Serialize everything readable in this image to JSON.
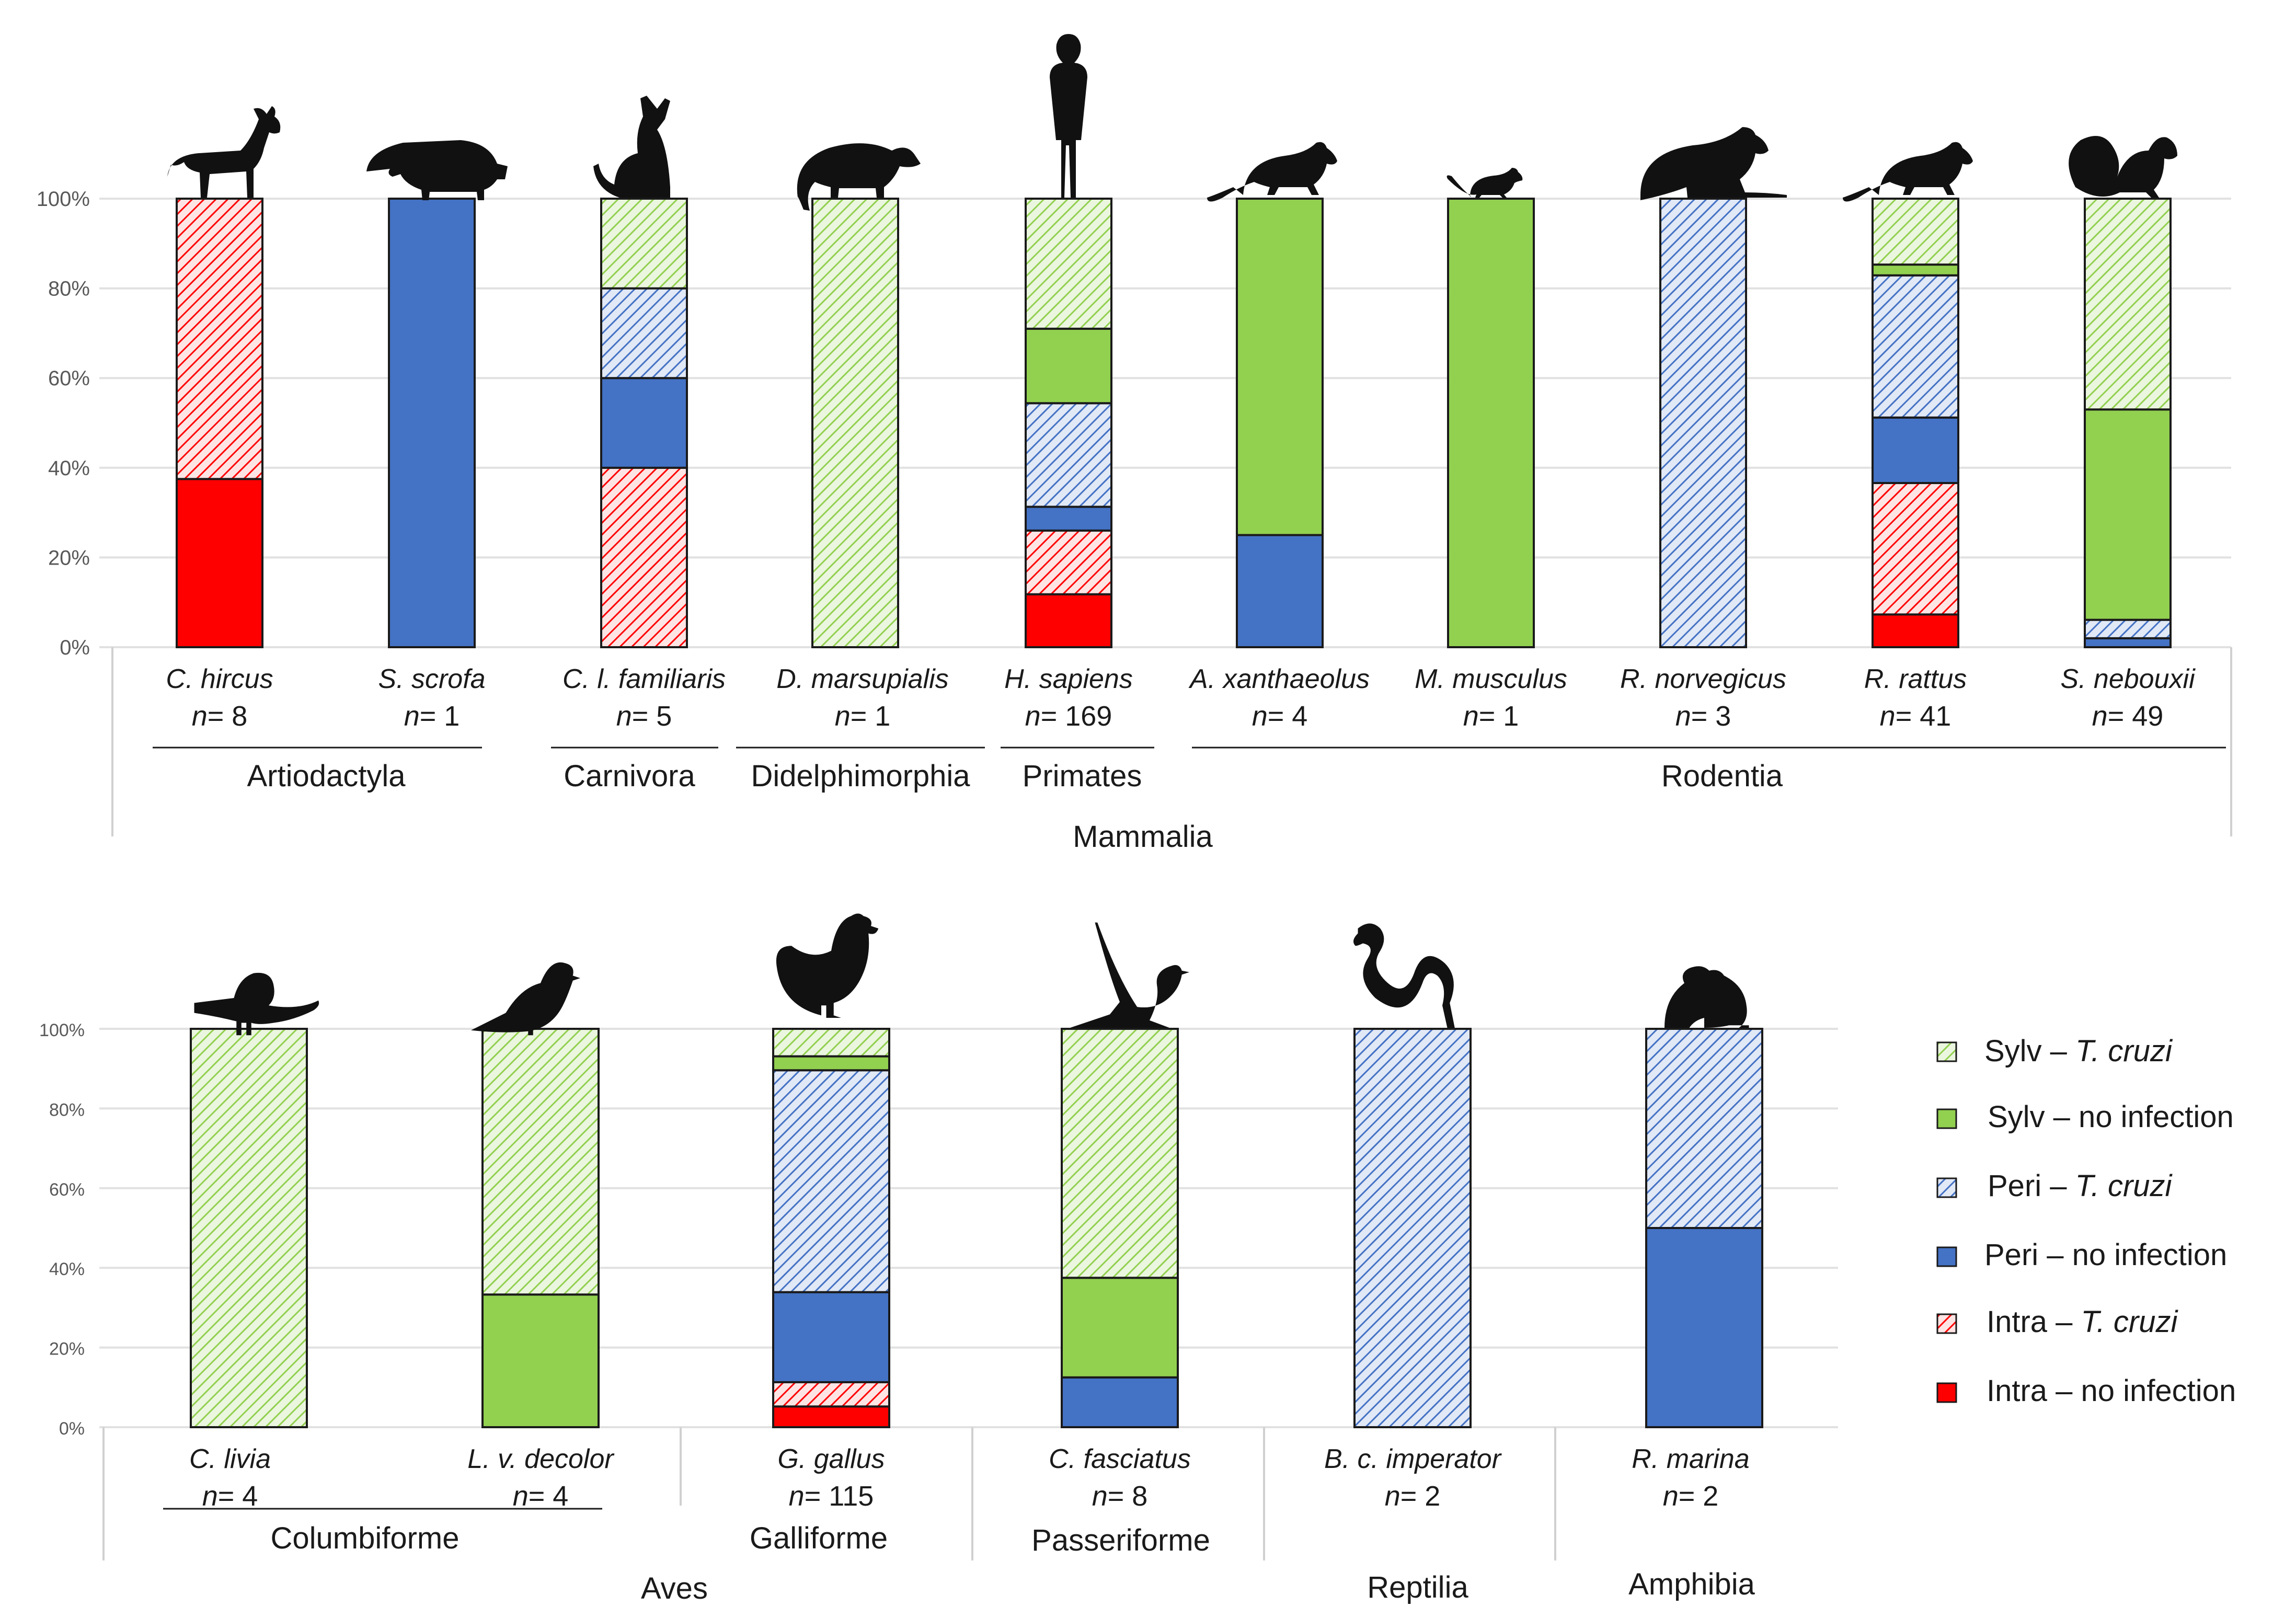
{
  "legend": [
    {
      "key": "sylv_tc",
      "label_main": "Sylv – ",
      "label_italic": "T. cruzi"
    },
    {
      "key": "sylv_no",
      "label_main": "Sylv – no infection",
      "label_italic": ""
    },
    {
      "key": "peri_tc",
      "label_main": "Peri – ",
      "label_italic": "T. cruzi"
    },
    {
      "key": "peri_no",
      "label_main": "Peri – no infection",
      "label_italic": ""
    },
    {
      "key": "intra_tc",
      "label_main": "Intra – ",
      "label_italic": "T. cruzi"
    },
    {
      "key": "intra_no",
      "label_main": "Intra – no infection",
      "label_italic": ""
    }
  ],
  "colors": {
    "sylv": "#92d050",
    "sylv_hatch_bg": "#ebf6df",
    "peri": "#4472c4",
    "peri_hatch_bg": "#e1e8f6",
    "intra": "#ff0000",
    "intra_hatch_bg": "#ffe4e4"
  },
  "chart_data": [
    {
      "type": "bar",
      "stacked": true,
      "title": "",
      "ylabel": "",
      "ylim": [
        0,
        100
      ],
      "yticks": [
        "0%",
        "20%",
        "40%",
        "60%",
        "80%",
        "100%"
      ],
      "series_order": [
        "intra_no",
        "intra_tc",
        "peri_no",
        "peri_tc",
        "sylv_no",
        "sylv_tc"
      ],
      "bars": [
        {
          "species": "C. hircus",
          "n_prefix": "n",
          "n_value": "= 8",
          "animal": "goat",
          "intra_no": 37.5,
          "intra_tc": 62.5,
          "peri_no": 0,
          "peri_tc": 0,
          "sylv_no": 0,
          "sylv_tc": 0
        },
        {
          "species": "S. scrofa",
          "n_prefix": "n",
          "n_value": "= 1",
          "animal": "pig",
          "intra_no": 0,
          "intra_tc": 0,
          "peri_no": 100,
          "peri_tc": 0,
          "sylv_no": 0,
          "sylv_tc": 0
        },
        {
          "species": "C. l. familiaris",
          "n_prefix": "n",
          "n_value": "= 5",
          "animal": "dog",
          "intra_no": 0,
          "intra_tc": 40,
          "peri_no": 20,
          "peri_tc": 20,
          "sylv_no": 0,
          "sylv_tc": 20
        },
        {
          "species": "D. marsupialis",
          "n_prefix": "n",
          "n_value": "= 1",
          "animal": "opossum",
          "intra_no": 0,
          "intra_tc": 0,
          "peri_no": 0,
          "peri_tc": 0,
          "sylv_no": 0,
          "sylv_tc": 100
        },
        {
          "species": "H. sapiens",
          "n_prefix": "n",
          "n_value": "= 169",
          "animal": "human",
          "intra_no": 11.8,
          "intra_tc": 14.2,
          "peri_no": 5.3,
          "peri_tc": 23.1,
          "sylv_no": 16.6,
          "sylv_tc": 29
        },
        {
          "species": "A. xanthaeolus",
          "n_prefix": "n",
          "n_value": "= 4",
          "animal": "rat",
          "intra_no": 0,
          "intra_tc": 0,
          "peri_no": 25,
          "peri_tc": 0,
          "sylv_no": 75,
          "sylv_tc": 0
        },
        {
          "species": "M. musculus",
          "n_prefix": "n",
          "n_value": "= 1",
          "animal": "mouse",
          "intra_no": 0,
          "intra_tc": 0,
          "peri_no": 0,
          "peri_tc": 0,
          "sylv_no": 100,
          "sylv_tc": 0
        },
        {
          "species": "R. norvegicus",
          "n_prefix": "n",
          "n_value": "= 3",
          "animal": "rat-large",
          "intra_no": 0,
          "intra_tc": 0,
          "peri_no": 0,
          "peri_tc": 100,
          "sylv_no": 0,
          "sylv_tc": 0
        },
        {
          "species": "R. rattus",
          "n_prefix": "n",
          "n_value": "= 41",
          "animal": "rat",
          "intra_no": 7.3,
          "intra_tc": 29.3,
          "peri_no": 14.6,
          "peri_tc": 31.7,
          "sylv_no": 2.4,
          "sylv_tc": 14.7
        },
        {
          "species": "S. nebouxii",
          "n_prefix": "n",
          "n_value": "= 49",
          "animal": "squirrel",
          "intra_no": 0,
          "intra_tc": 0,
          "peri_no": 2,
          "peri_tc": 4.1,
          "sylv_no": 46.9,
          "sylv_tc": 47
        }
      ],
      "groups": [
        {
          "label": "Artiodactyla"
        },
        {
          "label": "Carnivora"
        },
        {
          "label": "Didelphimorphia"
        },
        {
          "label": "Primates"
        },
        {
          "label": "Rodentia"
        }
      ],
      "class_label": "Mammalia"
    },
    {
      "type": "bar",
      "stacked": true,
      "title": "",
      "ylabel": "",
      "ylim": [
        0,
        100
      ],
      "yticks": [
        "0%",
        "20%",
        "40%",
        "60%",
        "80%",
        "100%"
      ],
      "series_order": [
        "intra_no",
        "intra_tc",
        "peri_no",
        "peri_tc",
        "sylv_no",
        "sylv_tc"
      ],
      "bars": [
        {
          "species": "C. livia",
          "n_prefix": "n",
          "n_value": "= 4",
          "animal": "pigeon",
          "intra_no": 0,
          "intra_tc": 0,
          "peri_no": 0,
          "peri_tc": 0,
          "sylv_no": 0,
          "sylv_tc": 100
        },
        {
          "species": "L. v. decolor",
          "n_prefix": "n",
          "n_value": "= 4",
          "animal": "dove",
          "intra_no": 0,
          "intra_tc": 0,
          "peri_no": 0,
          "peri_tc": 0,
          "sylv_no": 33.3,
          "sylv_tc": 66.7
        },
        {
          "species": "G. gallus",
          "n_prefix": "n",
          "n_value": "= 115",
          "animal": "hen",
          "intra_no": 5.2,
          "intra_tc": 6.1,
          "peri_no": 22.6,
          "peri_tc": 55.7,
          "sylv_no": 3.5,
          "sylv_tc": 6.9
        },
        {
          "species": "C. fasciatus",
          "n_prefix": "n",
          "n_value": "= 8",
          "animal": "wren",
          "intra_no": 0,
          "intra_tc": 0,
          "peri_no": 12.5,
          "peri_tc": 0,
          "sylv_no": 25,
          "sylv_tc": 62.5
        },
        {
          "species": "B. c. imperator",
          "n_prefix": "n",
          "n_value": "= 2",
          "animal": "snake",
          "intra_no": 0,
          "intra_tc": 0,
          "peri_no": 0,
          "peri_tc": 100,
          "sylv_no": 0,
          "sylv_tc": 0
        },
        {
          "species": "R. marina",
          "n_prefix": "n",
          "n_value": "= 2",
          "animal": "toad",
          "intra_no": 0,
          "intra_tc": 0,
          "peri_no": 50,
          "peri_tc": 50,
          "sylv_no": 0,
          "sylv_tc": 0
        }
      ],
      "groups": [
        {
          "label": "Columbiforme"
        },
        {
          "label": "Galliforme"
        },
        {
          "label": "Passeriforme"
        }
      ],
      "class_labels": [
        {
          "label": "Aves"
        },
        {
          "label": "Reptilia"
        },
        {
          "label": "Amphibia"
        }
      ]
    }
  ]
}
